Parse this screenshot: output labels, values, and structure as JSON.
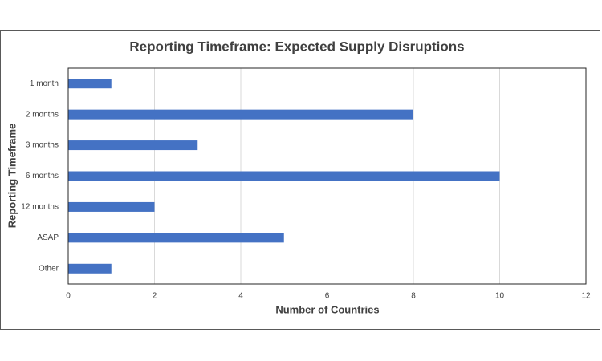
{
  "chart_data": {
    "type": "barh",
    "title": "Reporting Timeframe: Expected Supply Disruptions",
    "x_label": "Number of Countries",
    "y_label": "Reporting Timeframe",
    "categories": [
      "1 month",
      "2 months",
      "3 months",
      "6 months",
      "12 months",
      "ASAP",
      "Other"
    ],
    "values": [
      1,
      8,
      3,
      10,
      2,
      5,
      1
    ],
    "color": "#4472c4",
    "xlim": [
      0,
      12
    ],
    "xticks": [
      0,
      2,
      4,
      6,
      8,
      10,
      12
    ],
    "grid": true
  }
}
